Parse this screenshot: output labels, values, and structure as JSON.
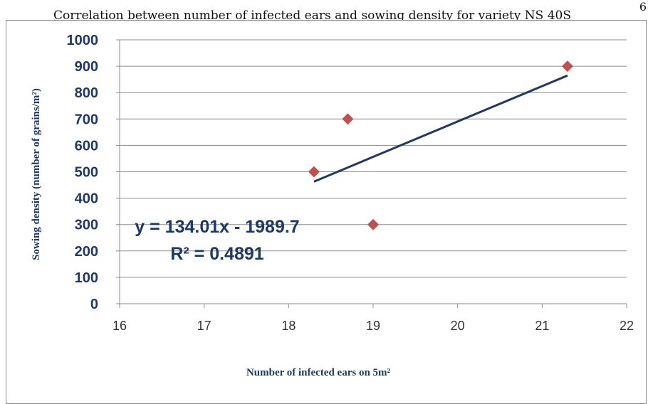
{
  "page": {
    "title": "Correlation between number of infected ears and sowing density for variety NS 40S",
    "page_number": "6"
  },
  "chart_data": {
    "type": "scatter",
    "title": "",
    "xlabel": "Number of infected ears on 5m²",
    "ylabel": "Sowing density (number of grains/m²)",
    "xlim": [
      16,
      22
    ],
    "ylim": [
      0,
      1000
    ],
    "xticks": [
      16,
      17,
      18,
      19,
      20,
      21,
      22
    ],
    "yticks": [
      0,
      100,
      200,
      300,
      400,
      500,
      600,
      700,
      800,
      900,
      1000
    ],
    "grid": "horizontal",
    "legend": "none",
    "series": [
      {
        "points": [
          {
            "x": 18.3,
            "y": 500
          },
          {
            "x": 18.7,
            "y": 700
          },
          {
            "x": 19.0,
            "y": 300
          },
          {
            "x": 21.3,
            "y": 900
          }
        ],
        "marker": "diamond",
        "color": "#c0504d"
      }
    ],
    "trendline": {
      "type": "linear",
      "slope": 134.01,
      "intercept": -1989.7,
      "x_range": [
        18.3,
        21.3
      ],
      "color": "#1f3864",
      "equation_label": "y = 134.01x - 1989.7",
      "r2_label": "R² = 0.4891"
    }
  }
}
